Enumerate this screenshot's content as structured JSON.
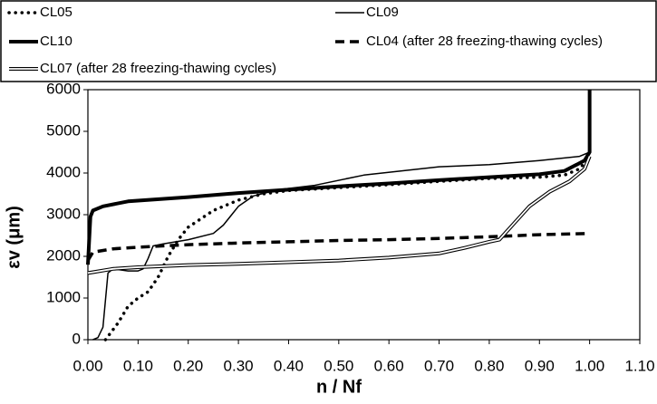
{
  "chart_data": {
    "type": "line",
    "xlabel": "n / Nf",
    "ylabel": "εv (μm)",
    "xlim": [
      0,
      1.1
    ],
    "ylim": [
      0,
      6000
    ],
    "xticks": [
      {
        "value": 0,
        "label": "0.00"
      },
      {
        "value": 0.1,
        "label": "0.10"
      },
      {
        "value": 0.2,
        "label": "0.20"
      },
      {
        "value": 0.3,
        "label": "0.30"
      },
      {
        "value": 0.4,
        "label": "0.40"
      },
      {
        "value": 0.5,
        "label": "0.50"
      },
      {
        "value": 0.6,
        "label": "0.60"
      },
      {
        "value": 0.7,
        "label": "0.70"
      },
      {
        "value": 0.8,
        "label": "0.80"
      },
      {
        "value": 0.9,
        "label": "0.90"
      },
      {
        "value": 1,
        "label": "1.00"
      },
      {
        "value": 1.1,
        "label": "1.10"
      }
    ],
    "yticks": [
      0,
      1000,
      2000,
      3000,
      4000,
      5000,
      6000
    ],
    "grid": false,
    "legend": "top",
    "series": [
      {
        "name": "CL05",
        "color": "#000000",
        "line_style": "dotted",
        "x": [
          0.035,
          0.06,
          0.08,
          0.1,
          0.12,
          0.14,
          0.16,
          0.18,
          0.2,
          0.25,
          0.3,
          0.35,
          0.4,
          0.5,
          0.6,
          0.7,
          0.8,
          0.9,
          0.95,
          0.98,
          1.0
        ],
        "values": [
          0,
          400,
          800,
          1000,
          1150,
          1500,
          2000,
          2400,
          2700,
          3100,
          3350,
          3500,
          3580,
          3650,
          3720,
          3800,
          3870,
          3900,
          3950,
          4100,
          4400
        ]
      },
      {
        "name": "CL09",
        "color": "#000000",
        "line_style": "thin",
        "x": [
          0.01,
          0.02,
          0.03,
          0.04,
          0.05,
          0.08,
          0.1,
          0.11,
          0.12,
          0.13,
          0.15,
          0.2,
          0.25,
          0.27,
          0.3,
          0.33,
          0.38,
          0.45,
          0.55,
          0.7,
          0.8,
          0.9,
          0.98,
          1.0,
          1.0
        ],
        "values": [
          0,
          50,
          300,
          1600,
          1700,
          1650,
          1650,
          1700,
          1950,
          2250,
          2300,
          2400,
          2550,
          2750,
          3200,
          3450,
          3600,
          3700,
          3950,
          4150,
          4200,
          4300,
          4400,
          4500,
          6000
        ]
      },
      {
        "name": "CL10",
        "color": "#000000",
        "line_style": "thick",
        "x": [
          0,
          0.005,
          0.01,
          0.03,
          0.08,
          0.2,
          0.3,
          0.4,
          0.5,
          0.6,
          0.7,
          0.8,
          0.9,
          0.95,
          0.99,
          1.0,
          1.0
        ],
        "values": [
          1800,
          2950,
          3100,
          3200,
          3320,
          3420,
          3520,
          3600,
          3680,
          3750,
          3830,
          3900,
          3970,
          4050,
          4300,
          4500,
          6000
        ]
      },
      {
        "name": "CL04 (after 28 freezing-thawing cycles)",
        "color": "#000000",
        "line_style": "dashed",
        "x": [
          0,
          0.01,
          0.05,
          0.1,
          0.2,
          0.3,
          0.4,
          0.5,
          0.6,
          0.7,
          0.8,
          0.9,
          1.0
        ],
        "values": [
          1900,
          2100,
          2180,
          2220,
          2280,
          2320,
          2350,
          2380,
          2400,
          2430,
          2470,
          2520,
          2550
        ]
      },
      {
        "name": "CL07 (after 28 freezing-thawing cycles)",
        "color": "#000000",
        "line_style": "double",
        "x": [
          0,
          0.01,
          0.05,
          0.1,
          0.2,
          0.3,
          0.4,
          0.5,
          0.6,
          0.7,
          0.75,
          0.8,
          0.82,
          0.85,
          0.88,
          0.92,
          0.96,
          0.99,
          1.0
        ],
        "values": [
          1600,
          1620,
          1700,
          1740,
          1790,
          1820,
          1860,
          1900,
          1970,
          2070,
          2200,
          2350,
          2400,
          2800,
          3200,
          3550,
          3800,
          4100,
          4400
        ]
      }
    ]
  }
}
